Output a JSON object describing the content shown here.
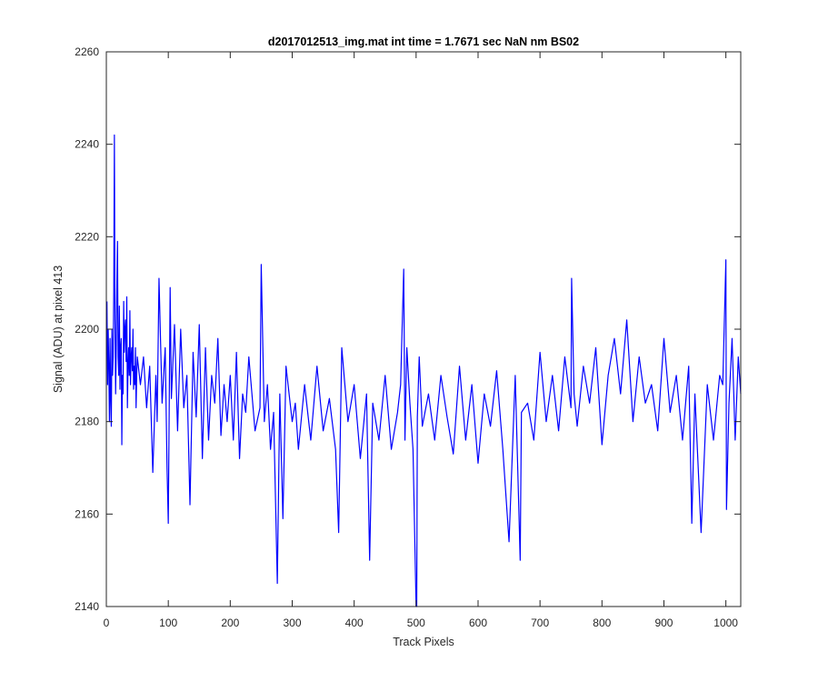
{
  "chart_data": {
    "type": "line",
    "title": "d2017012513_img.mat int time = 1.7671 sec  NaN nm BS02",
    "xlabel": "Track Pixels",
    "ylabel": "Signal (ADU) at pixel 413",
    "xlim": [
      0,
      1024
    ],
    "ylim": [
      2140,
      2260
    ],
    "xticks": [
      "0",
      "100",
      "200",
      "300",
      "400",
      "500",
      "600",
      "700",
      "800",
      "900",
      "1000"
    ],
    "yticks": [
      "2140",
      "2160",
      "2180",
      "2200",
      "2220",
      "2240",
      "2260"
    ],
    "grid": false,
    "line_color": "#0000ff",
    "series": [
      {
        "color": "#0000ff",
        "x": [
          1,
          2,
          3,
          4,
          5,
          6,
          7,
          8,
          9,
          10,
          11,
          12,
          13,
          14,
          15,
          16,
          17,
          18,
          19,
          20,
          21,
          22,
          23,
          24,
          25,
          26,
          27,
          28,
          29,
          30,
          31,
          32,
          33,
          34,
          35,
          36,
          37,
          38,
          39,
          40,
          41,
          42,
          43,
          44,
          45,
          46,
          47,
          48,
          49,
          50,
          55,
          60,
          65,
          70,
          75,
          80,
          82,
          85,
          90,
          95,
          98,
          100,
          103,
          105,
          110,
          115,
          120,
          125,
          130,
          135,
          140,
          145,
          150,
          155,
          160,
          165,
          170,
          175,
          180,
          185,
          190,
          195,
          200,
          205,
          210,
          215,
          220,
          225,
          230,
          240,
          248,
          250,
          255,
          260,
          265,
          270,
          276,
          280,
          285,
          290,
          300,
          305,
          310,
          320,
          330,
          340,
          350,
          360,
          370,
          375,
          380,
          390,
          400,
          410,
          420,
          425,
          430,
          440,
          450,
          460,
          470,
          475,
          480,
          482,
          485,
          490,
          495,
          500,
          501,
          502,
          505,
          510,
          520,
          530,
          540,
          550,
          560,
          570,
          580,
          590,
          600,
          610,
          620,
          630,
          640,
          650,
          660,
          668,
          670,
          680,
          690,
          700,
          710,
          720,
          730,
          740,
          750,
          751,
          755,
          760,
          770,
          780,
          790,
          800,
          810,
          820,
          830,
          840,
          850,
          860,
          870,
          880,
          890,
          900,
          910,
          920,
          930,
          940,
          945,
          950,
          960,
          970,
          980,
          990,
          995,
          1000,
          1001,
          1005,
          1010,
          1015,
          1020,
          1024
        ],
        "y": [
          2206,
          2188,
          2200,
          2192,
          2180,
          2198,
          2185,
          2179,
          2200,
          2190,
          2194,
          2208,
          2242,
          2202,
          2186,
          2196,
          2210,
          2219,
          2194,
          2190,
          2205,
          2187,
          2196,
          2198,
          2175,
          2190,
          2186,
          2206,
          2195,
          2200,
          2202,
          2193,
          2207,
          2183,
          2192,
          2196,
          2190,
          2204,
          2188,
          2194,
          2196,
          2191,
          2200,
          2187,
          2192,
          2188,
          2196,
          2183,
          2190,
          2194,
          2188,
          2194,
          2183,
          2192,
          2169,
          2190,
          2180,
          2211,
          2184,
          2196,
          2170,
          2158,
          2209,
          2185,
          2201,
          2178,
          2200,
          2183,
          2190,
          2162,
          2195,
          2181,
          2201,
          2172,
          2196,
          2176,
          2190,
          2184,
          2198,
          2177,
          2188,
          2180,
          2190,
          2176,
          2195,
          2172,
          2186,
          2182,
          2194,
          2178,
          2183,
          2214,
          2180,
          2188,
          2174,
          2182,
          2145,
          2186,
          2159,
          2192,
          2180,
          2184,
          2174,
          2188,
          2176,
          2192,
          2178,
          2185,
          2174,
          2156,
          2196,
          2180,
          2188,
          2172,
          2186,
          2150,
          2184,
          2176,
          2190,
          2174,
          2182,
          2188,
          2213,
          2176,
          2196,
          2184,
          2174,
          2140,
          2140,
          2181,
          2194,
          2179,
          2186,
          2176,
          2190,
          2181,
          2173,
          2192,
          2176,
          2188,
          2171,
          2186,
          2179,
          2191,
          2174,
          2154,
          2190,
          2150,
          2182,
          2184,
          2176,
          2195,
          2180,
          2190,
          2178,
          2194,
          2183,
          2211,
          2186,
          2179,
          2192,
          2184,
          2196,
          2175,
          2190,
          2198,
          2186,
          2202,
          2180,
          2194,
          2184,
          2188,
          2178,
          2198,
          2182,
          2190,
          2176,
          2192,
          2158,
          2186,
          2156,
          2188,
          2176,
          2190,
          2188,
          2215,
          2161,
          2184,
          2198,
          2176,
          2194,
          2186
        ]
      }
    ]
  }
}
